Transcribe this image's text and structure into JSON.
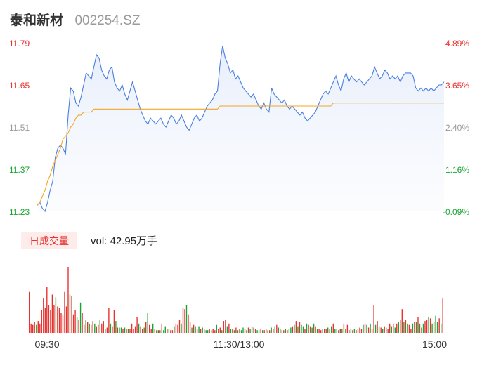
{
  "header": {
    "name": "泰和新材",
    "code": "002254.SZ"
  },
  "volume": {
    "tab_label": "日成交量",
    "prefix": "vol: ",
    "value": "42.95万手"
  },
  "colors": {
    "price": "#4a7fe0",
    "avg": "#f5a623",
    "up": "#e8312f",
    "down": "#1aa332",
    "flat": "#999999"
  },
  "chart_data": [
    {
      "type": "line",
      "title": "",
      "y_left_ticks": [
        "11.79",
        "11.65",
        "11.51",
        "11.37",
        "11.23"
      ],
      "y_right_ticks": [
        "4.89%",
        "3.65%",
        "2.40%",
        "1.16%",
        "-0.09%"
      ],
      "ylim": [
        11.23,
        11.79
      ],
      "x_ticks": [
        "09:30",
        "11:30/13:00",
        "15:00"
      ],
      "series": [
        {
          "role": "price",
          "values": [
            11.25,
            11.26,
            11.24,
            11.23,
            11.26,
            11.3,
            11.33,
            11.41,
            11.44,
            11.45,
            11.44,
            11.42,
            11.55,
            11.64,
            11.63,
            11.59,
            11.58,
            11.61,
            11.65,
            11.69,
            11.68,
            11.67,
            11.71,
            11.75,
            11.74,
            11.7,
            11.68,
            11.67,
            11.7,
            11.71,
            11.66,
            11.64,
            11.63,
            11.65,
            11.62,
            11.6,
            11.63,
            11.66,
            11.63,
            11.6,
            11.57,
            11.55,
            11.53,
            11.52,
            11.54,
            11.53,
            11.52,
            11.53,
            11.54,
            11.52,
            11.51,
            11.53,
            11.55,
            11.54,
            11.52,
            11.53,
            11.55,
            11.53,
            11.51,
            11.5,
            11.52,
            11.54,
            11.55,
            11.53,
            11.54,
            11.56,
            11.58,
            11.59,
            11.6,
            11.62,
            11.63,
            11.72,
            11.78,
            11.74,
            11.72,
            11.69,
            11.7,
            11.67,
            11.68,
            11.66,
            11.64,
            11.63,
            11.62,
            11.61,
            11.62,
            11.6,
            11.58,
            11.57,
            11.59,
            11.57,
            11.56,
            11.64,
            11.62,
            11.61,
            11.6,
            11.59,
            11.6,
            11.58,
            11.57,
            11.58,
            11.57,
            11.56,
            11.55,
            11.56,
            11.54,
            11.53,
            11.54,
            11.55,
            11.56,
            11.58,
            11.6,
            11.62,
            11.63,
            11.62,
            11.64,
            11.66,
            11.68,
            11.65,
            11.63,
            11.67,
            11.69,
            11.66,
            11.68,
            11.67,
            11.66,
            11.67,
            11.66,
            11.65,
            11.66,
            11.67,
            11.68,
            11.71,
            11.69,
            11.67,
            11.68,
            11.7,
            11.69,
            11.67,
            11.68,
            11.67,
            11.68,
            11.66,
            11.68,
            11.69,
            11.69,
            11.69,
            11.68,
            11.64,
            11.63,
            11.64,
            11.63,
            11.64,
            11.63,
            11.64,
            11.63,
            11.64,
            11.65,
            11.65,
            11.66
          ]
        },
        {
          "role": "average",
          "values": [
            11.25,
            11.26,
            11.28,
            11.3,
            11.33,
            11.35,
            11.38,
            11.4,
            11.42,
            11.44,
            11.47,
            11.48,
            11.49,
            11.51,
            11.52,
            11.54,
            11.55,
            11.55,
            11.56,
            11.56,
            11.56,
            11.56,
            11.57,
            11.57,
            11.57,
            11.57,
            11.57,
            11.57,
            11.57,
            11.57,
            11.57,
            11.57,
            11.57,
            11.57,
            11.57,
            11.57,
            11.57,
            11.57,
            11.57,
            11.57,
            11.57,
            11.57,
            11.57,
            11.57,
            11.57,
            11.57,
            11.57,
            11.57,
            11.57,
            11.57,
            11.57,
            11.57,
            11.57,
            11.57,
            11.57,
            11.57,
            11.57,
            11.57,
            11.57,
            11.57,
            11.57,
            11.57,
            11.57,
            11.57,
            11.57,
            11.57,
            11.57,
            11.57,
            11.57,
            11.57,
            11.57,
            11.58,
            11.58,
            11.58,
            11.58,
            11.58,
            11.58,
            11.58,
            11.58,
            11.58,
            11.58,
            11.58,
            11.58,
            11.58,
            11.58,
            11.58,
            11.58,
            11.58,
            11.58,
            11.58,
            11.58,
            11.58,
            11.58,
            11.58,
            11.58,
            11.58,
            11.58,
            11.58,
            11.58,
            11.58,
            11.58,
            11.58,
            11.58,
            11.58,
            11.58,
            11.58,
            11.58,
            11.58,
            11.58,
            11.58,
            11.58,
            11.58,
            11.58,
            11.58,
            11.58,
            11.59,
            11.59,
            11.59,
            11.59,
            11.59,
            11.59,
            11.59,
            11.59,
            11.59,
            11.59,
            11.59,
            11.59,
            11.59,
            11.59,
            11.59,
            11.59,
            11.59,
            11.59,
            11.59,
            11.59,
            11.59,
            11.59,
            11.59,
            11.59,
            11.59,
            11.59,
            11.59,
            11.59,
            11.59,
            11.59,
            11.59,
            11.59,
            11.59,
            11.59,
            11.59,
            11.59,
            11.59,
            11.59,
            11.59,
            11.59,
            11.59,
            11.59,
            11.59,
            11.59
          ]
        }
      ]
    },
    {
      "type": "bar",
      "title": "",
      "ylim": [
        0,
        1
      ],
      "values": [
        0.62,
        0.14,
        0.12,
        0.16,
        0.12,
        0.18,
        0.14,
        0.35,
        0.52,
        0.38,
        0.7,
        0.42,
        0.34,
        0.58,
        0.42,
        0.54,
        0.4,
        0.38,
        0.3,
        0.28,
        0.62,
        0.4,
        1.0,
        0.58,
        0.56,
        0.28,
        0.34,
        0.24,
        0.2,
        0.46,
        0.3,
        0.12,
        0.2,
        0.16,
        0.14,
        0.12,
        0.18,
        0.14,
        0.1,
        0.12,
        0.2,
        0.14,
        0.18,
        0.06,
        0.08,
        0.38,
        0.14,
        0.1,
        0.34,
        0.18,
        0.08,
        0.08,
        0.08,
        0.06,
        0.08,
        0.06,
        0.06,
        0.06,
        0.14,
        0.06,
        0.1,
        0.24,
        0.14,
        0.1,
        0.06,
        0.08,
        0.16,
        0.3,
        0.12,
        0.06,
        0.14,
        0.06,
        0.04,
        0.04,
        0.04,
        0.14,
        0.04,
        0.1,
        0.06,
        0.06,
        0.04,
        0.04,
        0.1,
        0.14,
        0.12,
        0.2,
        0.14,
        0.38,
        0.36,
        0.42,
        0.28,
        0.16,
        0.08,
        0.12,
        0.1,
        0.06,
        0.1,
        0.06,
        0.08,
        0.06,
        0.04,
        0.04,
        0.06,
        0.04,
        0.06,
        0.04,
        0.12,
        0.06,
        0.08,
        0.04,
        0.18,
        0.2,
        0.1,
        0.14,
        0.06,
        0.06,
        0.04,
        0.08,
        0.04,
        0.06,
        0.04,
        0.08,
        0.06,
        0.04,
        0.08,
        0.06,
        0.1,
        0.08,
        0.06,
        0.04,
        0.04,
        0.06,
        0.04,
        0.04,
        0.06,
        0.04,
        0.04,
        0.08,
        0.06,
        0.1,
        0.12,
        0.08,
        0.06,
        0.04,
        0.04,
        0.06,
        0.04,
        0.06,
        0.08,
        0.1,
        0.12,
        0.18,
        0.1,
        0.16,
        0.12,
        0.1,
        0.06,
        0.14,
        0.12,
        0.1,
        0.08,
        0.14,
        0.1,
        0.06,
        0.06,
        0.04,
        0.06,
        0.06,
        0.06,
        0.08,
        0.06,
        0.1,
        0.14,
        0.06,
        0.06,
        0.04,
        0.06,
        0.06,
        0.14,
        0.06,
        0.12,
        0.04,
        0.06,
        0.04,
        0.06,
        0.04,
        0.06,
        0.08,
        0.06,
        0.12,
        0.14,
        0.12,
        0.08,
        0.14,
        0.06,
        0.42,
        0.12,
        0.18,
        0.1,
        0.08,
        0.06,
        0.1,
        0.08,
        0.06,
        0.14,
        0.1,
        0.14,
        0.08,
        0.14,
        0.16,
        0.2,
        0.36,
        0.16,
        0.2,
        0.14,
        0.12,
        0.06,
        0.14,
        0.16,
        0.16,
        0.24,
        0.14,
        0.08,
        0.14,
        0.18,
        0.2,
        0.24,
        0.22,
        0.14,
        0.16,
        0.26,
        0.16,
        0.22,
        0.14,
        0.52
      ],
      "directions": [
        "u",
        "u",
        "u",
        "u",
        "d",
        "u",
        "u",
        "u",
        "u",
        "u",
        "u",
        "u",
        "u",
        "u",
        "u",
        "d",
        "u",
        "u",
        "u",
        "u",
        "u",
        "u",
        "u",
        "d",
        "u",
        "u",
        "u",
        "d",
        "u",
        "d",
        "u",
        "u",
        "d",
        "u",
        "d",
        "u",
        "u",
        "d",
        "u",
        "u",
        "d",
        "u",
        "u",
        "d",
        "u",
        "u",
        "d",
        "u",
        "u",
        "d",
        "u",
        "d",
        "d",
        "u",
        "d",
        "u",
        "d",
        "u",
        "u",
        "u",
        "u",
        "u",
        "d",
        "u",
        "u",
        "d",
        "u",
        "d",
        "u",
        "u",
        "d",
        "u",
        "d",
        "u",
        "d",
        "u",
        "d",
        "d",
        "u",
        "d",
        "u",
        "u",
        "d",
        "u",
        "u",
        "u",
        "d",
        "u",
        "u",
        "d",
        "u",
        "u",
        "d",
        "u",
        "d",
        "u",
        "d",
        "u",
        "d",
        "u",
        "d",
        "d",
        "u",
        "d",
        "u",
        "u",
        "d",
        "u",
        "u",
        "d",
        "u",
        "u",
        "d",
        "u",
        "d",
        "u",
        "d",
        "u",
        "d",
        "u",
        "d",
        "d",
        "u",
        "d",
        "u",
        "d",
        "u",
        "d",
        "u",
        "d",
        "d",
        "u",
        "d",
        "u",
        "d",
        "u",
        "u",
        "d",
        "u",
        "d",
        "u",
        "d",
        "u",
        "d",
        "u",
        "d",
        "u",
        "d",
        "d",
        "u",
        "d",
        "u",
        "d",
        "u",
        "d",
        "d",
        "u",
        "d",
        "u",
        "d",
        "u",
        "d",
        "u",
        "d",
        "u",
        "u",
        "d",
        "u",
        "u",
        "d",
        "u",
        "d",
        "u",
        "d",
        "d",
        "u",
        "u",
        "d",
        "u",
        "d",
        "u",
        "u",
        "d",
        "u",
        "d",
        "u",
        "d",
        "u",
        "u",
        "d",
        "u",
        "d",
        "u",
        "d",
        "u",
        "u",
        "d",
        "u",
        "d",
        "u",
        "d",
        "u",
        "d",
        "u",
        "u",
        "d",
        "u",
        "d",
        "u",
        "d",
        "u",
        "u",
        "d",
        "u",
        "d",
        "u",
        "u",
        "d",
        "u",
        "d",
        "u",
        "d",
        "u",
        "d",
        "u",
        "u",
        "d",
        "u",
        "d",
        "u",
        "d",
        "d",
        "u",
        "d",
        "u",
        "u",
        "d"
      ]
    }
  ]
}
